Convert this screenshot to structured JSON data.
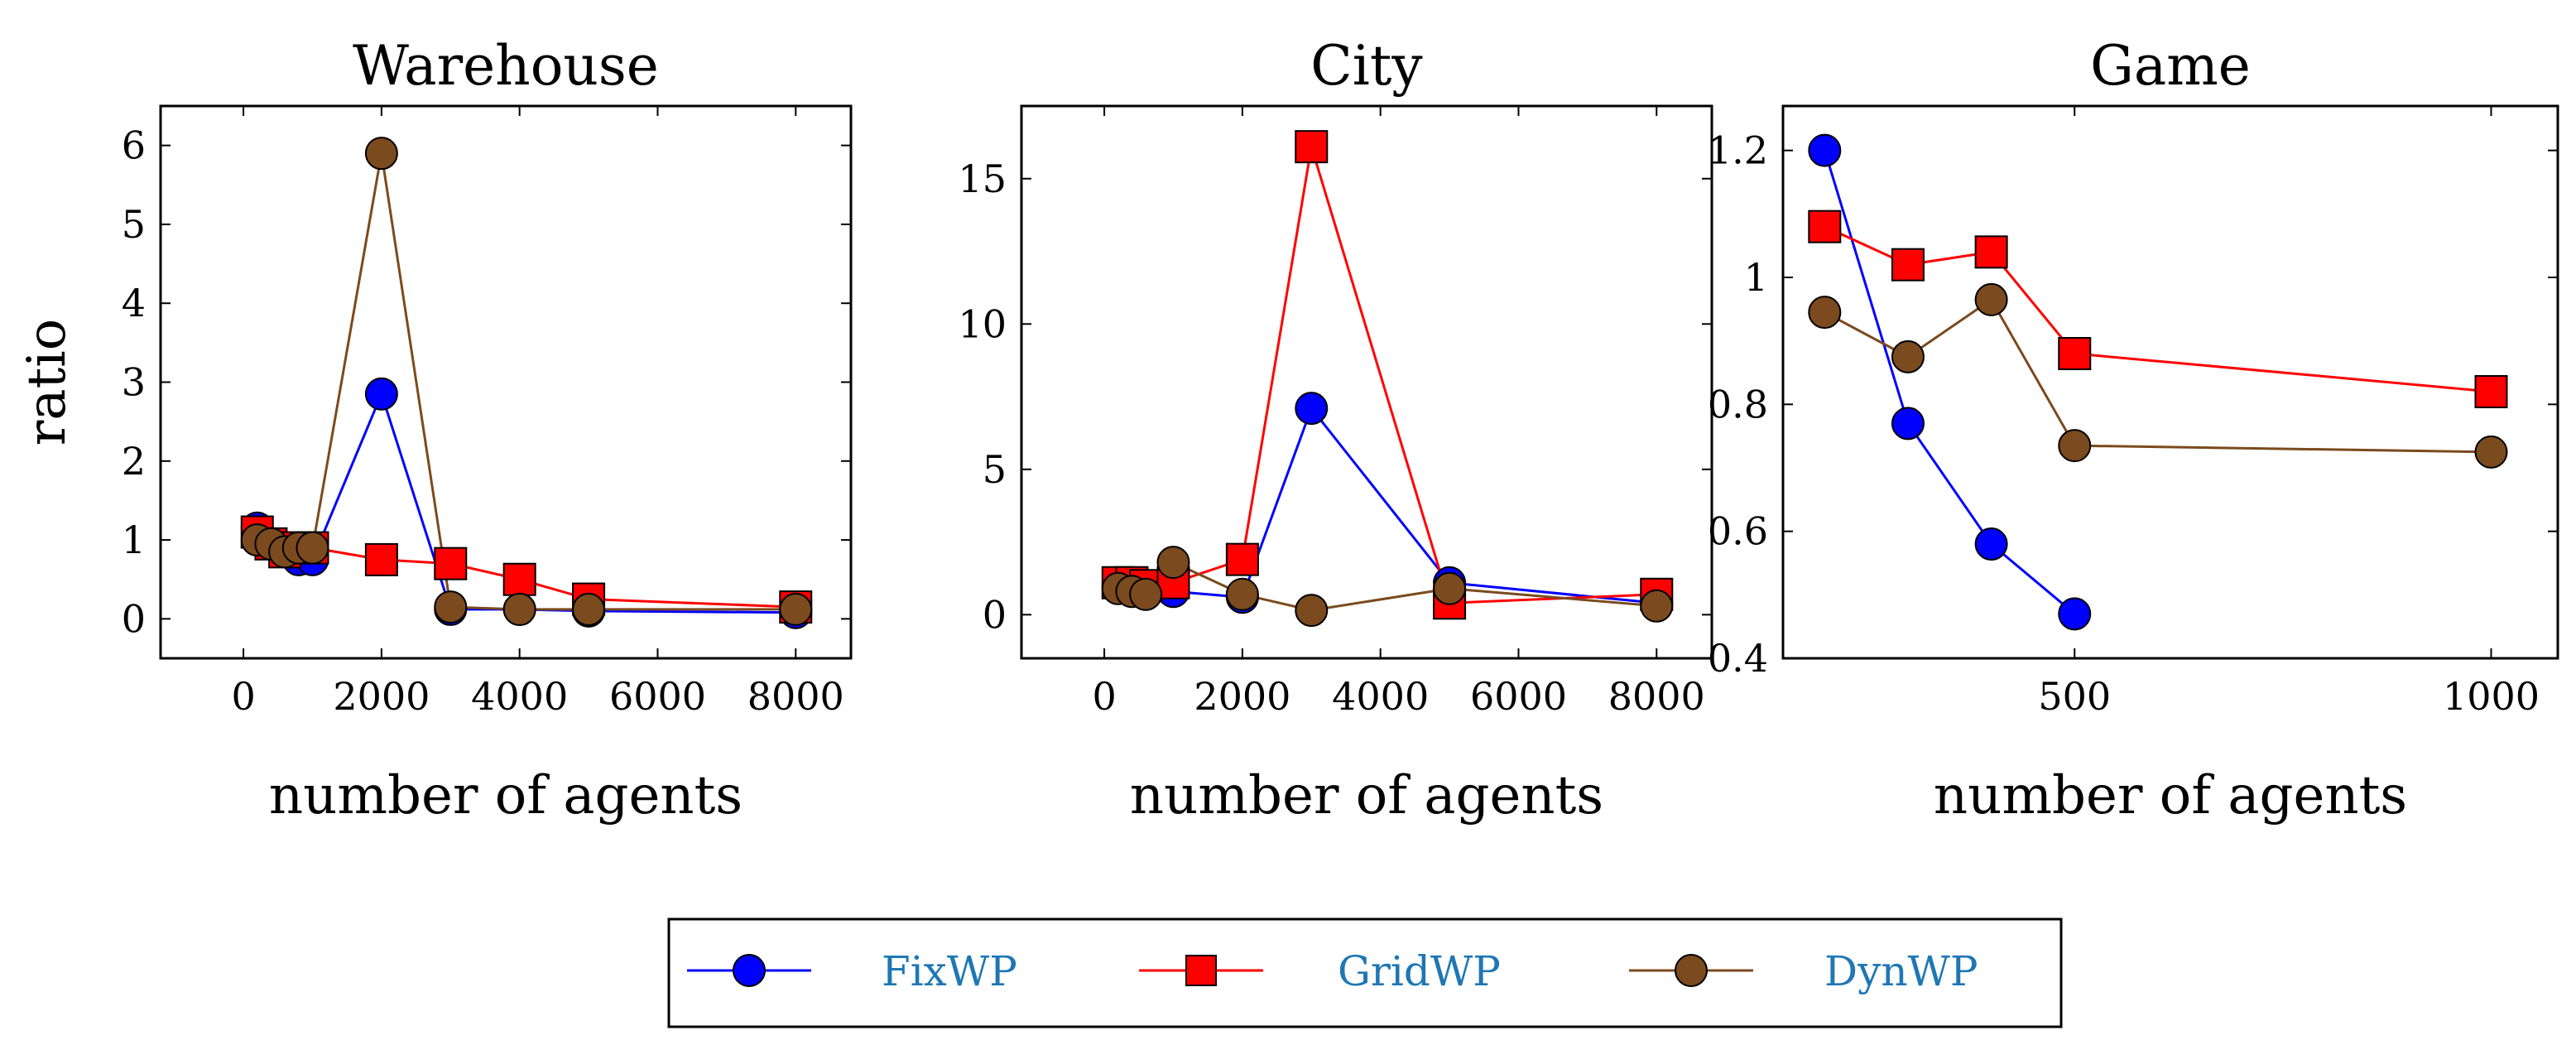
{
  "chart_data": [
    {
      "type": "line",
      "title": "Warehouse",
      "xlabel": "number of agents",
      "ylabel": "ratio",
      "xlim": [
        -1200,
        8800
      ],
      "ylim": [
        -0.5,
        6.5
      ],
      "xticks": [
        0,
        2000,
        4000,
        6000,
        8000
      ],
      "xtick_labels": [
        "0",
        "2000",
        "4000",
        "6000",
        "8000"
      ],
      "yticks": [
        0,
        1,
        2,
        3,
        4,
        5,
        6
      ],
      "ytick_labels": [
        "0",
        "1",
        "2",
        "3",
        "4",
        "5",
        "6"
      ],
      "series": [
        {
          "name": "FixWP",
          "x": [
            200,
            400,
            600,
            800,
            1000,
            2000,
            3000,
            4000,
            5000,
            8000
          ],
          "y": [
            1.15,
            0.95,
            0.85,
            0.75,
            0.75,
            2.85,
            0.12,
            0.12,
            0.1,
            0.08
          ]
        },
        {
          "name": "GridWP",
          "x": [
            200,
            400,
            600,
            800,
            1000,
            2000,
            3000,
            4000,
            5000,
            8000
          ],
          "y": [
            1.1,
            0.95,
            0.85,
            0.9,
            0.9,
            0.75,
            0.7,
            0.5,
            0.25,
            0.15
          ]
        },
        {
          "name": "DynWP",
          "x": [
            200,
            400,
            600,
            800,
            1000,
            2000,
            3000,
            4000,
            5000,
            8000
          ],
          "y": [
            1.0,
            0.95,
            0.85,
            0.9,
            0.9,
            5.9,
            0.15,
            0.12,
            0.12,
            0.12
          ]
        }
      ]
    },
    {
      "type": "line",
      "title": "City",
      "xlabel": "number of agents",
      "ylabel": "",
      "xlim": [
        -1200,
        8800
      ],
      "ylim": [
        -1.5,
        17.5
      ],
      "xticks": [
        0,
        2000,
        4000,
        6000,
        8000
      ],
      "xtick_labels": [
        "0",
        "2000",
        "4000",
        "6000",
        "8000"
      ],
      "yticks": [
        0,
        5,
        10,
        15
      ],
      "ytick_labels": [
        "0",
        "5",
        "10",
        "15"
      ],
      "series": [
        {
          "name": "FixWP",
          "x": [
            200,
            400,
            600,
            1000,
            2000,
            3000,
            5000,
            8000
          ],
          "y": [
            1.0,
            1.0,
            0.8,
            0.8,
            0.6,
            7.1,
            1.1,
            0.4
          ]
        },
        {
          "name": "GridWP",
          "x": [
            200,
            400,
            600,
            1000,
            2000,
            3000,
            5000,
            8000
          ],
          "y": [
            1.1,
            1.1,
            1.0,
            1.1,
            1.9,
            16.1,
            0.4,
            0.7
          ]
        },
        {
          "name": "DynWP",
          "x": [
            200,
            400,
            600,
            1000,
            2000,
            3000,
            5000,
            8000
          ],
          "y": [
            0.9,
            0.8,
            0.7,
            1.8,
            0.7,
            0.15,
            0.9,
            0.3
          ]
        }
      ]
    },
    {
      "type": "line",
      "title": "Game",
      "xlabel": "number of agents",
      "ylabel": "",
      "xlim": [
        150,
        1080
      ],
      "ylim": [
        0.4,
        1.27
      ],
      "xticks": [
        500,
        1000
      ],
      "xtick_labels": [
        "500",
        "1000"
      ],
      "yticks": [
        0.4,
        0.6,
        0.8,
        1.0,
        1.2
      ],
      "ytick_labels": [
        "0.4",
        "0.6",
        "0.8",
        "1",
        "1.2"
      ],
      "series": [
        {
          "name": "FixWP",
          "x": [
            200,
            300,
            400,
            500
          ],
          "y": [
            1.2,
            0.77,
            0.58,
            0.47
          ]
        },
        {
          "name": "GridWP",
          "x": [
            200,
            300,
            400,
            500,
            1000
          ],
          "y": [
            1.08,
            1.02,
            1.04,
            0.88,
            0.82
          ]
        },
        {
          "name": "DynWP",
          "x": [
            200,
            300,
            400,
            500,
            1000
          ],
          "y": [
            0.945,
            0.875,
            0.965,
            0.735,
            0.725
          ]
        }
      ]
    }
  ],
  "legend": {
    "placement": "bottom-center",
    "items": [
      {
        "name": "FixWP",
        "color": "#0000ff",
        "marker": "circle"
      },
      {
        "name": "GridWP",
        "color": "#ff0000",
        "marker": "square"
      },
      {
        "name": "DynWP",
        "color": "#7b4a1e",
        "marker": "circle"
      }
    ]
  },
  "colors": {
    "FixWP": "#0000ff",
    "GridWP": "#ff0000",
    "DynWP": "#7b4a1e"
  }
}
